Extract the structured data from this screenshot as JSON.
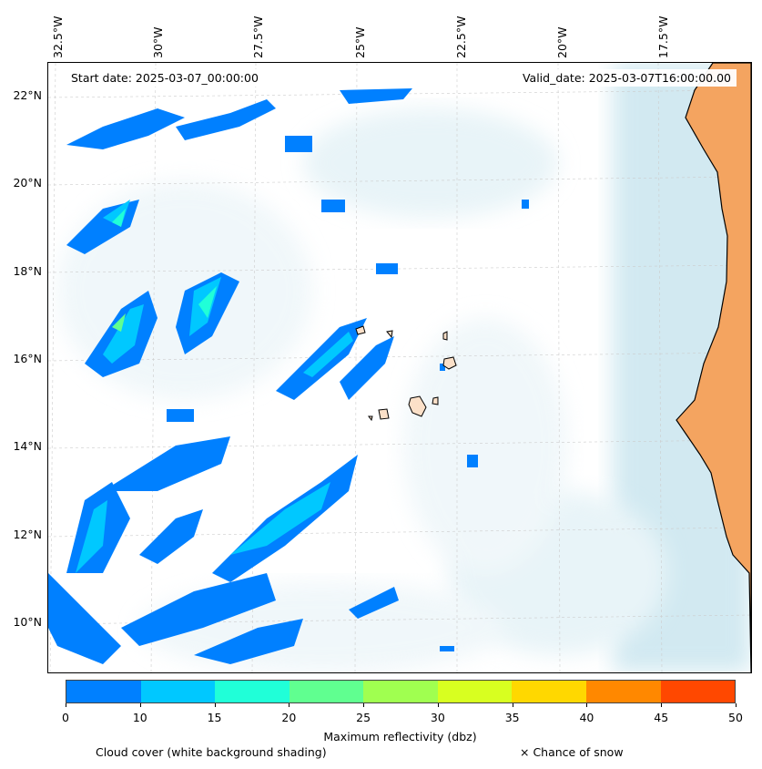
{
  "header": {
    "start_date": "Start date: 2025-03-07_00:00:00",
    "valid_date": "Valid_date: 2025-03-07T16:00:00.00"
  },
  "map": {
    "longitude_labels": [
      "32.5°W",
      "30°W",
      "27.5°W",
      "25°W",
      "22.5°W",
      "20°W",
      "17.5°W"
    ],
    "latitude_labels": [
      "22°N",
      "20°N",
      "18°N",
      "16°N",
      "14°N",
      "12°N",
      "10°N"
    ],
    "colors": {
      "land": "#f4a460",
      "islands": "#fbe0c8",
      "coastal_cloud": "#add8e6",
      "coastline": "#000000"
    }
  },
  "colorbar": {
    "label": "Maximum reflectivity (dbz)",
    "ticks": [
      "0",
      "10",
      "15",
      "20",
      "25",
      "30",
      "35",
      "40",
      "45",
      "50"
    ],
    "colors": [
      "#0080ff",
      "#00c8ff",
      "#20ffd8",
      "#60ff90",
      "#a0ff50",
      "#d8ff20",
      "#ffd800",
      "#ff8800",
      "#ff4800"
    ]
  },
  "legend": {
    "cloud_cover": "Cloud cover (white background shading)",
    "snow": "× Chance of snow"
  }
}
